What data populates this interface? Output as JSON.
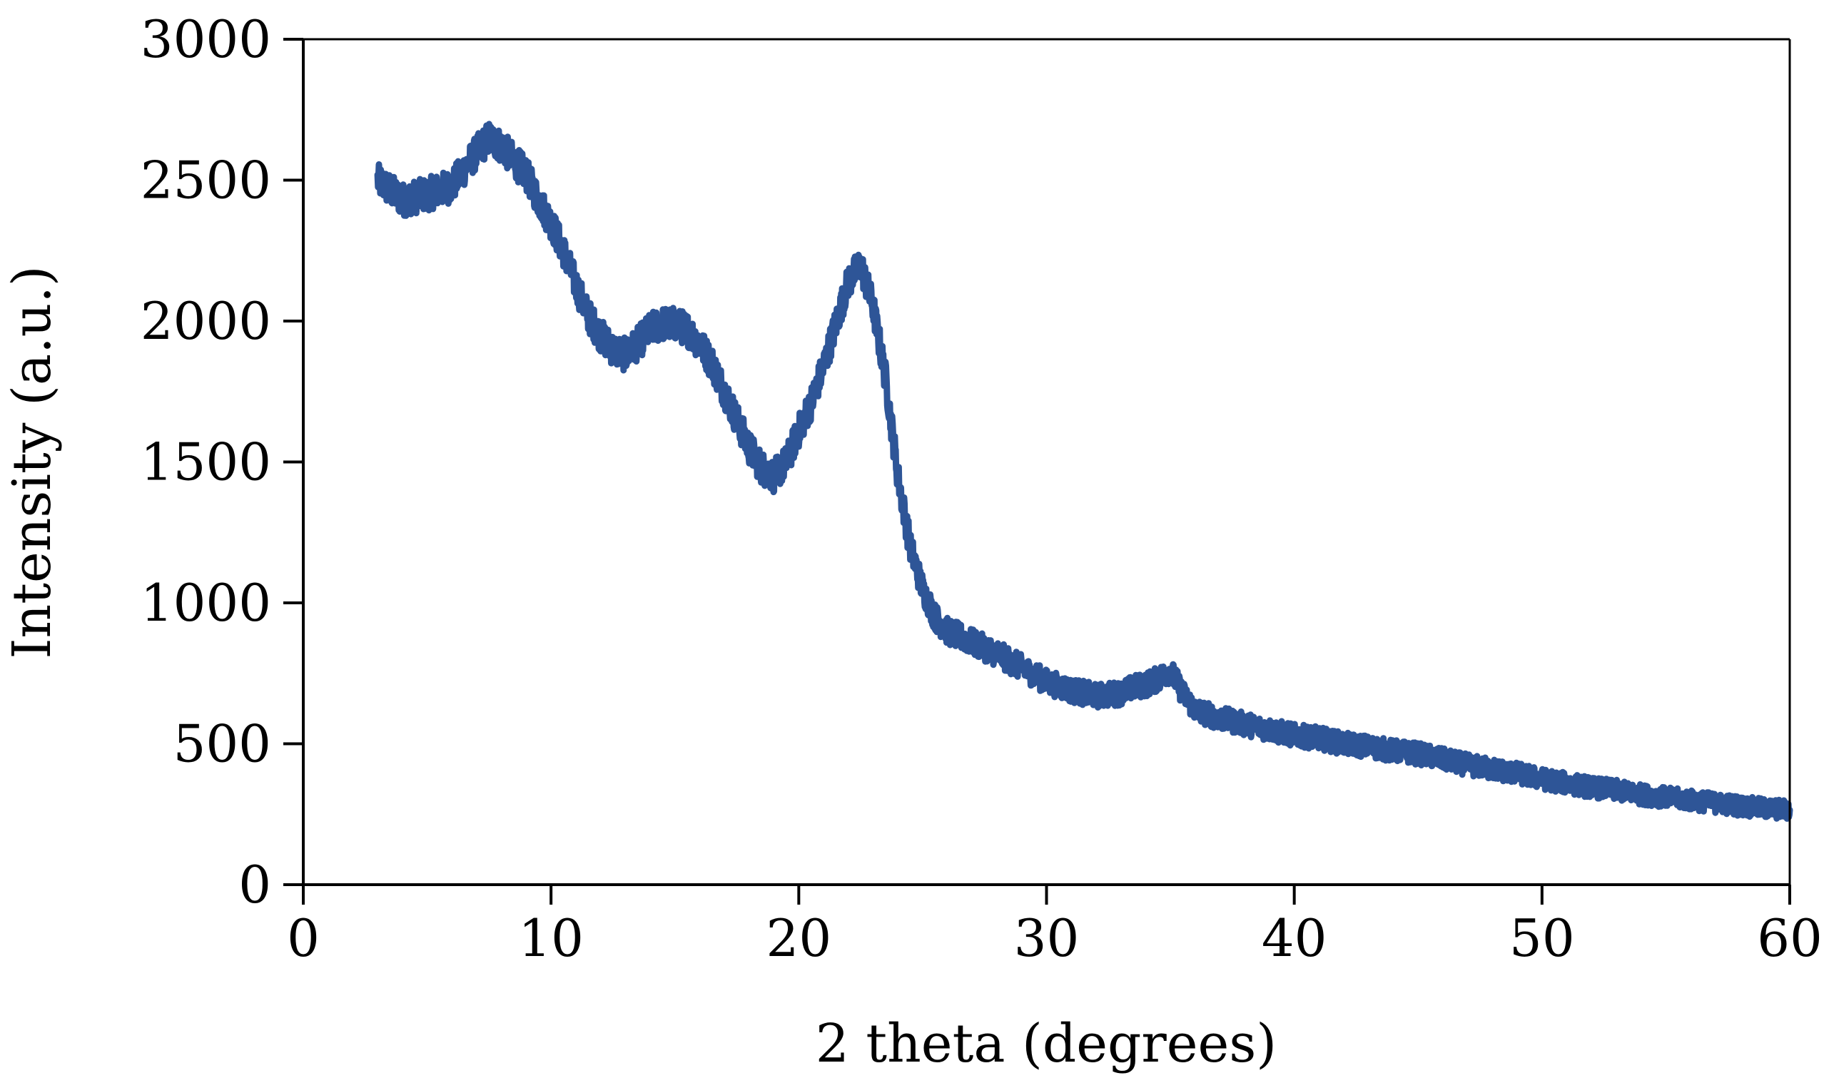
{
  "chart_data": {
    "type": "line",
    "title": "",
    "xlabel": "2 theta (degrees)",
    "ylabel": "Intensity (a.u.)",
    "xlim": [
      0,
      60
    ],
    "ylim": [
      0,
      3000
    ],
    "x_ticks": [
      0,
      10,
      20,
      30,
      40,
      50,
      60
    ],
    "y_ticks": [
      0,
      500,
      1000,
      1500,
      2000,
      2500,
      3000
    ],
    "x_tick_labels": [
      "0",
      "10",
      "20",
      "30",
      "40",
      "50",
      "60"
    ],
    "y_tick_labels": [
      "0",
      "500",
      "1000",
      "1500",
      "2000",
      "2500",
      "3000"
    ],
    "grid": false,
    "legend": "none",
    "line_color": "#2e5597",
    "noise": 60,
    "series": [
      {
        "x": [
          3.0,
          4.0,
          5.0,
          6.0,
          6.5,
          7.0,
          7.5,
          8.0,
          8.5,
          9.0,
          9.5,
          10.0,
          10.5,
          11.0,
          11.5,
          12.0,
          12.5,
          13.0,
          13.5,
          14.0,
          14.5,
          15.0,
          15.5,
          16.0,
          16.5,
          17.0,
          17.5,
          18.0,
          18.5,
          19.0,
          19.5,
          20.0,
          20.5,
          21.0,
          21.5,
          22.0,
          22.5,
          23.0,
          23.5,
          24.0,
          24.5,
          25.0,
          25.5,
          26.0,
          27.0,
          28.0,
          29.0,
          30.0,
          31.0,
          32.0,
          33.0,
          33.5,
          34.0,
          34.5,
          35.0,
          35.5,
          36.0,
          37.0,
          38.0,
          39.0,
          40.0,
          41.0,
          42.0,
          43.0,
          44.0,
          45.0,
          46.0,
          47.0,
          48.0,
          49.0,
          50.0,
          51.0,
          52.0,
          53.0,
          54.0,
          55.0,
          56.0,
          57.0,
          58.0,
          59.0,
          60.0
        ],
        "y": [
          2500,
          2430,
          2450,
          2480,
          2540,
          2600,
          2650,
          2620,
          2570,
          2520,
          2430,
          2350,
          2250,
          2130,
          2020,
          1950,
          1900,
          1880,
          1920,
          1970,
          1990,
          1990,
          1970,
          1920,
          1850,
          1750,
          1650,
          1550,
          1480,
          1450,
          1500,
          1610,
          1710,
          1840,
          1990,
          2140,
          2200,
          2050,
          1800,
          1450,
          1200,
          1050,
          950,
          900,
          860,
          820,
          770,
          720,
          690,
          670,
          680,
          700,
          710,
          730,
          760,
          680,
          620,
          590,
          570,
          550,
          530,
          520,
          500,
          490,
          475,
          465,
          445,
          425,
          410,
          395,
          375,
          360,
          345,
          335,
          320,
          310,
          300,
          290,
          280,
          270,
          265
        ]
      }
    ]
  }
}
